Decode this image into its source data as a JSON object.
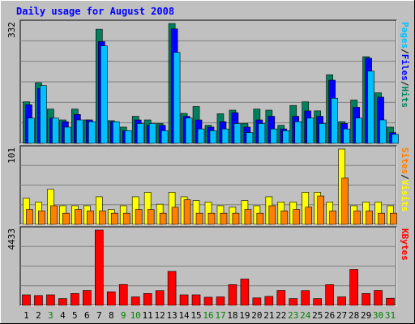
{
  "chart_data": {
    "type": "bar",
    "title": "Daily usage for August 2008",
    "categories": [
      "1",
      "2",
      "3",
      "4",
      "5",
      "6",
      "7",
      "8",
      "9",
      "10",
      "11",
      "12",
      "13",
      "14",
      "15",
      "16",
      "17",
      "18",
      "19",
      "20",
      "21",
      "22",
      "23",
      "24",
      "25",
      "26",
      "27",
      "28",
      "29",
      "30",
      "31"
    ],
    "weekend_days": [
      "3",
      "9",
      "10",
      "16",
      "17",
      "23",
      "24",
      "30",
      "31"
    ],
    "colors": {
      "hits": "#00805C",
      "files": "#0000FF",
      "pages": "#00C0FF",
      "visits": "#FFFF00",
      "sites": "#FF8000",
      "kbytes": "#FF0000",
      "title": "#0000FF",
      "weekday_label": "#000000",
      "weekend_label": "#008000",
      "panel_bg": "#C0C0C0",
      "grid": "#808080"
    },
    "panels": [
      {
        "id": "top",
        "max_label": "332",
        "ymax": 332,
        "legend": [
          {
            "text": "Hits",
            "color": "#00805C"
          },
          {
            "text": "/",
            "color": "#000000"
          },
          {
            "text": "Files",
            "color": "#0000FF"
          },
          {
            "text": "/",
            "color": "#000000"
          },
          {
            "text": "Pages",
            "color": "#00C0FF"
          }
        ],
        "series": [
          {
            "name": "Hits",
            "color": "#00805C",
            "values": [
              115,
              168,
              95,
              65,
              95,
              65,
              316,
              63,
              45,
              75,
              65,
              55,
              332,
              83,
              102,
              50,
              82,
              92,
              55,
              95,
              92,
              50,
              105,
              115,
              90,
              190,
              60,
              120,
              240,
              140,
              45
            ]
          },
          {
            "name": "Files",
            "color": "#0000FF",
            "values": [
              107,
              152,
              70,
              60,
              80,
              65,
              282,
              60,
              35,
              65,
              50,
              50,
              317,
              75,
              65,
              45,
              60,
              85,
              45,
              65,
              75,
              40,
              75,
              90,
              75,
              175,
              55,
              100,
              236,
              128,
              30
            ]
          },
          {
            "name": "Pages",
            "color": "#00C0FF",
            "values": [
              70,
              160,
              70,
              45,
              65,
              60,
              270,
              60,
              35,
              55,
              55,
              35,
              252,
              70,
              40,
              35,
              40,
              55,
              30,
              55,
              40,
              35,
              60,
              70,
              55,
              125,
              40,
              70,
              200,
              65,
              25
            ]
          }
        ]
      },
      {
        "id": "middle",
        "max_label": "101",
        "ymax": 101,
        "legend": [
          {
            "text": "Visits",
            "color": "#FFFF00"
          },
          {
            "text": "/",
            "color": "#000000"
          },
          {
            "text": "Sites",
            "color": "#FF8000"
          }
        ],
        "series": [
          {
            "name": "Visits",
            "color": "#FFFF00",
            "values": [
              35,
              30,
              47,
              25,
              25,
              25,
              37,
              20,
              25,
              37,
              43,
              27,
              43,
              37,
              32,
              30,
              25,
              23,
              32,
              25,
              37,
              30,
              30,
              43,
              43,
              30,
              101,
              25,
              30,
              30,
              25
            ]
          },
          {
            "name": "Sites",
            "color": "#FF8000",
            "values": [
              20,
              18,
              25,
              15,
              20,
              18,
              18,
              15,
              15,
              20,
              20,
              15,
              23,
              33,
              15,
              15,
              15,
              15,
              20,
              15,
              25,
              18,
              20,
              23,
              38,
              18,
              62,
              18,
              18,
              15,
              15
            ]
          }
        ]
      },
      {
        "id": "bottom",
        "max_label": "4433",
        "ymax": 4433,
        "legend": [
          {
            "text": "KBytes",
            "color": "#FF0000"
          }
        ],
        "series": [
          {
            "name": "KBytes",
            "color": "#FF0000",
            "values": [
              620,
              580,
              620,
              400,
              700,
              880,
              4433,
              800,
              1230,
              500,
              700,
              870,
              2000,
              620,
              620,
              480,
              500,
              1220,
              1550,
              440,
              530,
              880,
              400,
              870,
              400,
              1220,
              500,
              2120,
              700,
              880,
              420
            ]
          }
        ]
      }
    ]
  }
}
